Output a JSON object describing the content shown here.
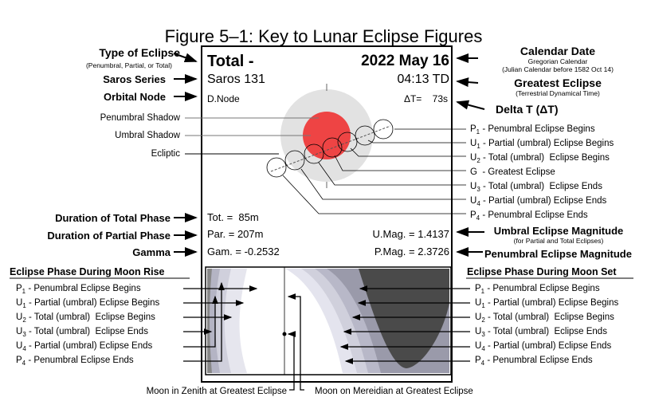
{
  "title": "Figure 5–1: Key to Lunar Eclipse Figures",
  "left_labels": {
    "type_of_eclipse": "Type of Eclipse",
    "type_note": "(Penumbral, Partial, or Total)",
    "saros_series": "Saros Series",
    "orbital_node": "Orbital Node",
    "penumbral_shadow": "Penumbral Shadow",
    "umbral_shadow": "Umbral Shadow",
    "ecliptic": "Ecliptic",
    "duration_total": "Duration of Total Phase",
    "duration_partial": "Duration of Partial Phase",
    "gamma": "Gamma"
  },
  "right_labels": {
    "calendar_date": "Calendar Date",
    "calendar_note1": "Gregorian Calendar",
    "calendar_note2": "(Julian Calendar before 1582 Oct 14)",
    "greatest_eclipse": "Greatest Eclipse",
    "greatest_note": "(Terrestrial Dynamical Time)",
    "delta_t": "Delta T (ΔT)",
    "umbral_mag": "Umbral Eclipse Magnitude",
    "umbral_mag_note": "(for Partial and Total Eclipses)",
    "penumbral_mag": "Penumbral Eclipse Magnitude"
  },
  "contacts": [
    {
      "sym": "P",
      "sub": "1",
      "text": " - Penumbral Eclipse Begins"
    },
    {
      "sym": "U",
      "sub": "1",
      "text": " - Partial (umbral) Eclipse Begins"
    },
    {
      "sym": "U",
      "sub": "2",
      "text": " - Total (umbral)  Eclipse Begins"
    },
    {
      "sym": "G",
      "sub": "",
      "text": "  - Greatest Eclipse"
    },
    {
      "sym": "U",
      "sub": "3",
      "text": " - Total (umbral)  Eclipse Ends"
    },
    {
      "sym": "U",
      "sub": "4",
      "text": " - Partial (umbral) Eclipse Ends"
    },
    {
      "sym": "P",
      "sub": "4",
      "text": " - Penumbral Eclipse Ends"
    }
  ],
  "moon_rise": {
    "heading": "Eclipse Phase During Moon Rise",
    "items": [
      {
        "sym": "P",
        "sub": "1",
        "text": " - Penumbral Eclipse Begins"
      },
      {
        "sym": "U",
        "sub": "1",
        "text": " - Partial (umbral) Eclipse Begins"
      },
      {
        "sym": "U",
        "sub": "2",
        "text": " - Total (umbral)  Eclipse Begins"
      },
      {
        "sym": "U",
        "sub": "3",
        "text": " - Total (umbral)  Eclipse Ends"
      },
      {
        "sym": "U",
        "sub": "4",
        "text": " - Partial (umbral) Eclipse Ends"
      },
      {
        "sym": "P",
        "sub": "4",
        "text": " - Penumbral Eclipse Ends"
      }
    ]
  },
  "moon_set": {
    "heading": "Eclipse Phase During Moon Set",
    "items": [
      {
        "sym": "P",
        "sub": "1",
        "text": " - Penumbral Eclipse Begins"
      },
      {
        "sym": "U",
        "sub": "1",
        "text": " - Partial (umbral) Eclipse Begins"
      },
      {
        "sym": "U",
        "sub": "2",
        "text": " - Total (umbral)  Eclipse Begins"
      },
      {
        "sym": "U",
        "sub": "3",
        "text": " - Total (umbral)  Eclipse Ends"
      },
      {
        "sym": "U",
        "sub": "4",
        "text": " - Partial (umbral) Eclipse Ends"
      },
      {
        "sym": "P",
        "sub": "4",
        "text": " - Penumbral Eclipse Ends"
      }
    ]
  },
  "panel": {
    "type": "Total  -",
    "saros": "Saros 131",
    "node": "D.Node",
    "date": "2022 May 16",
    "time": "04:13 TD",
    "delta_t": "ΔT=    73s",
    "tot": "Tot. =  85m",
    "par": "Par. = 207m",
    "gam": "Gam. = -0.2532",
    "umag": "U.Mag. = 1.4137",
    "pmag": "P.Mag. = 2.3726"
  },
  "bottom": {
    "zenith": "Moon in Zenith at Greatest Eclipse",
    "meridian": "Moon on Mereidian at Greatest Eclipse"
  },
  "colors": {
    "umbra": "#ee4444",
    "penumbra": "#e2e2e2",
    "night": "#4a4a4a"
  }
}
